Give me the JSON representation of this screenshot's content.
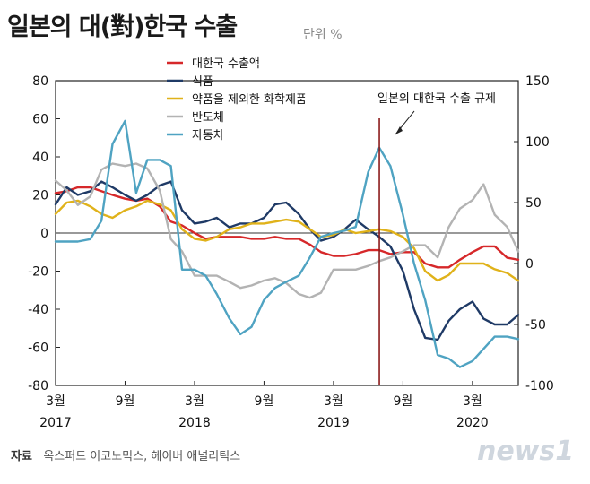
{
  "title": "일본의 대(對)한국 수출",
  "unit": "단위 %",
  "source_label": "자료",
  "source_text": "옥스퍼드 이코노믹스, 헤이버 애널리틱스",
  "logo_text": "news1",
  "chart_data": {
    "type": "line",
    "title": "일본의 대(對)한국 수출",
    "annotation": "일본의 대한국 수출 규제",
    "annotation_x": 2019.5,
    "ylim_left": [
      -80,
      80
    ],
    "ylim_right": [
      -100,
      150
    ],
    "yticks_left": [
      "80",
      "60",
      "40",
      "20",
      "0",
      "-20",
      "-40",
      "-60",
      "-80"
    ],
    "yticks_right": [
      "150",
      "100",
      "50",
      "0",
      "-50",
      "-100"
    ],
    "xticks": [
      {
        "x": 2017.17,
        "month": "3월",
        "year": "2017"
      },
      {
        "x": 2017.67,
        "month": "9월",
        "year": ""
      },
      {
        "x": 2018.17,
        "month": "3월",
        "year": "2018"
      },
      {
        "x": 2018.67,
        "month": "9월",
        "year": ""
      },
      {
        "x": 2019.17,
        "month": "3월",
        "year": "2019"
      },
      {
        "x": 2019.67,
        "month": "9월",
        "year": ""
      },
      {
        "x": 2020.17,
        "month": "3월",
        "year": "2020"
      }
    ],
    "xlim": [
      2017.17,
      2020.5
    ],
    "x": [
      2017.17,
      2017.25,
      2017.33,
      2017.42,
      2017.5,
      2017.58,
      2017.67,
      2017.75,
      2017.83,
      2017.92,
      2018.0,
      2018.08,
      2018.17,
      2018.25,
      2018.33,
      2018.42,
      2018.5,
      2018.58,
      2018.67,
      2018.75,
      2018.83,
      2018.92,
      2019.0,
      2019.08,
      2019.17,
      2019.25,
      2019.33,
      2019.42,
      2019.5,
      2019.58,
      2019.67,
      2019.75,
      2019.83,
      2019.92,
      2020.0,
      2020.08,
      2020.17,
      2020.25,
      2020.33,
      2020.42,
      2020.5
    ],
    "series": [
      {
        "name": "대한국 수출액",
        "color": "#d6282a",
        "axis": "left",
        "values": [
          21,
          22,
          24,
          24,
          22,
          20,
          18,
          17,
          18,
          14,
          6,
          4,
          0,
          -3,
          -2,
          -2,
          -2,
          -3,
          -3,
          -2,
          -3,
          -3,
          -6,
          -10,
          -12,
          -12,
          -11,
          -9,
          -9,
          -11,
          -10,
          -10,
          -16,
          -18,
          -18,
          -14,
          -10,
          -7,
          -7,
          -13,
          -14
        ]
      },
      {
        "name": "식품",
        "color": "#1f3a66",
        "axis": "left",
        "values": [
          15,
          24,
          20,
          22,
          27,
          24,
          20,
          17,
          20,
          25,
          27,
          12,
          5,
          6,
          8,
          3,
          5,
          5,
          8,
          15,
          16,
          10,
          2,
          -4,
          -2,
          2,
          7,
          2,
          -2,
          -7,
          -20,
          -40,
          -55,
          -56,
          -46,
          -40,
          -36,
          -45,
          -48,
          -48,
          -43
        ]
      },
      {
        "name": "약품을 제외한 화학제품",
        "color": "#e0b21a",
        "axis": "left",
        "values": [
          10,
          16,
          17,
          14,
          10,
          8,
          12,
          14,
          17,
          15,
          12,
          2,
          -3,
          -4,
          -2,
          2,
          3,
          5,
          5,
          6,
          7,
          6,
          2,
          -2,
          -1,
          2,
          0,
          1,
          2,
          1,
          -2,
          -8,
          -20,
          -25,
          -22,
          -16,
          -16,
          -16,
          -19,
          -21,
          -25
        ]
      },
      {
        "name": "반도체",
        "color": "#b3b3b3",
        "axis": "right",
        "values": [
          68,
          60,
          48,
          55,
          77,
          82,
          80,
          82,
          78,
          60,
          20,
          10,
          -10,
          -10,
          -10,
          -15,
          -20,
          -18,
          -14,
          -12,
          -16,
          -25,
          -28,
          -24,
          -5,
          -5,
          -5,
          -2,
          2,
          5,
          10,
          15,
          15,
          5,
          30,
          45,
          52,
          65,
          40,
          30,
          10
        ]
      },
      {
        "name": "자동차",
        "color": "#4fa3c2",
        "axis": "right",
        "values": [
          18,
          18,
          18,
          20,
          35,
          98,
          117,
          58,
          85,
          85,
          80,
          -5,
          -5,
          -10,
          -25,
          -45,
          -58,
          -52,
          -30,
          -20,
          -15,
          -10,
          5,
          22,
          25,
          27,
          30,
          75,
          95,
          80,
          40,
          0,
          -30,
          -75,
          -78,
          -85,
          -80,
          -70,
          -60,
          -60,
          -62
        ]
      }
    ]
  }
}
